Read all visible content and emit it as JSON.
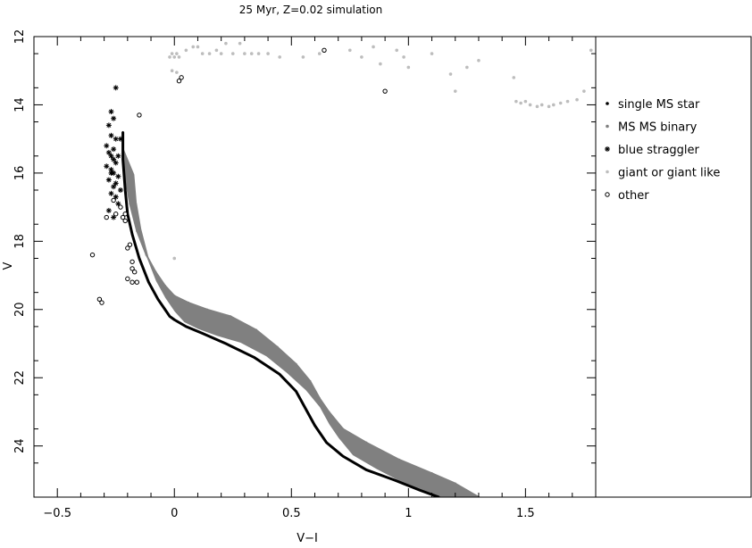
{
  "chart_data": {
    "type": "scatter",
    "title": "25 Myr, Z=0.02 simulation",
    "xlabel": "V−I",
    "ylabel": "V",
    "xlim": [
      -0.6,
      1.8
    ],
    "ylim": [
      25.5,
      12.0
    ],
    "y_inverted": true,
    "grid": false,
    "legend_position": "right",
    "x_ticks": [
      {
        "value": -0.5,
        "label": "−0.5"
      },
      {
        "value": 0,
        "label": "0"
      },
      {
        "value": 0.5,
        "label": "0.5"
      },
      {
        "value": 1,
        "label": "1"
      },
      {
        "value": 1.5,
        "label": "1.5"
      }
    ],
    "y_ticks": [
      {
        "value": 12,
        "label": "12"
      },
      {
        "value": 14,
        "label": "14"
      },
      {
        "value": 16,
        "label": "16"
      },
      {
        "value": 18,
        "label": "18"
      },
      {
        "value": 20,
        "label": "20"
      },
      {
        "value": 22,
        "label": "22"
      },
      {
        "value": 24,
        "label": "24"
      }
    ],
    "series": [
      {
        "name": "single MS star",
        "marker": "dot",
        "color": "#000000",
        "shape": "sequence_line",
        "x": [
          -0.22,
          -0.22,
          -0.21,
          -0.2,
          -0.18,
          -0.15,
          -0.11,
          -0.07,
          -0.04,
          -0.02,
          0.0,
          0.05,
          0.12,
          0.22,
          0.34,
          0.45,
          0.52,
          0.56,
          0.6,
          0.65,
          0.72,
          0.82,
          0.94,
          1.05,
          1.13
        ],
        "y": [
          14.8,
          15.6,
          16.5,
          17.2,
          17.8,
          18.5,
          19.2,
          19.7,
          20.0,
          20.2,
          20.3,
          20.5,
          20.7,
          21.0,
          21.4,
          21.9,
          22.4,
          22.9,
          23.4,
          23.9,
          24.3,
          24.7,
          25.0,
          25.3,
          25.5
        ]
      },
      {
        "name": "MS MS binary",
        "marker": "dot",
        "color": "#808080",
        "shape": "band",
        "x": [
          -0.22,
          -0.21,
          -0.19,
          -0.16,
          -0.12,
          -0.08,
          -0.04,
          0.0,
          0.06,
          0.14,
          0.24,
          0.35,
          0.44,
          0.52,
          0.58,
          0.62,
          0.66,
          0.72,
          0.82,
          0.96,
          1.1,
          1.2,
          1.3
        ],
        "y": [
          15.3,
          16.1,
          16.9,
          17.7,
          18.4,
          18.9,
          19.3,
          19.6,
          19.8,
          20.0,
          20.2,
          20.6,
          21.1,
          21.6,
          22.1,
          22.6,
          23.0,
          23.5,
          23.9,
          24.4,
          24.8,
          25.1,
          25.5
        ],
        "band_width_mag": 0.75
      },
      {
        "name": "blue straggler",
        "marker": "asterisk",
        "color": "#000000",
        "x": [
          -0.25,
          -0.27,
          -0.26,
          -0.28,
          -0.27,
          -0.25,
          -0.29,
          -0.26,
          -0.28,
          -0.27,
          -0.24,
          -0.26,
          -0.25,
          -0.29,
          -0.27,
          -0.26,
          -0.24,
          -0.28,
          -0.25,
          -0.26,
          -0.23,
          -0.27,
          -0.25,
          -0.24,
          -0.28,
          -0.26,
          -0.23,
          -0.27
        ],
        "y": [
          13.5,
          14.2,
          14.4,
          14.6,
          14.9,
          15.0,
          15.2,
          15.3,
          15.4,
          15.5,
          15.5,
          15.6,
          15.7,
          15.8,
          15.9,
          16.0,
          16.1,
          16.2,
          16.3,
          16.4,
          16.5,
          16.6,
          16.7,
          16.9,
          17.1,
          17.3,
          15.0,
          16.0
        ]
      },
      {
        "name": "giant or giant like",
        "marker": "dot",
        "color": "#bdbdbd",
        "x": [
          -0.02,
          -0.01,
          0.0,
          0.01,
          0.02,
          0.05,
          0.08,
          0.1,
          0.12,
          0.15,
          0.18,
          0.2,
          0.22,
          0.25,
          0.28,
          0.3,
          0.33,
          0.36,
          0.4,
          0.45,
          0.55,
          0.62,
          0.75,
          0.8,
          0.85,
          0.88,
          0.95,
          0.98,
          1.0,
          1.1,
          1.18,
          1.2,
          1.25,
          1.3,
          1.45,
          1.46,
          1.48,
          1.5,
          1.52,
          1.55,
          1.57,
          1.6,
          1.62,
          1.65,
          1.68,
          1.72,
          1.75,
          1.78,
          -0.01,
          0.01,
          0.0
        ],
        "y": [
          12.6,
          12.5,
          12.6,
          12.5,
          12.6,
          12.4,
          12.3,
          12.3,
          12.5,
          12.5,
          12.4,
          12.5,
          12.2,
          12.5,
          12.2,
          12.5,
          12.5,
          12.5,
          12.5,
          12.6,
          12.6,
          12.5,
          12.4,
          12.6,
          12.3,
          12.8,
          12.4,
          12.6,
          12.9,
          12.5,
          13.1,
          13.6,
          12.9,
          12.7,
          13.2,
          13.9,
          13.95,
          13.9,
          14.0,
          14.05,
          14.0,
          14.05,
          14.0,
          13.95,
          13.9,
          13.85,
          13.6,
          12.4,
          13.0,
          13.05,
          18.5
        ],
        "y_note": ""
      },
      {
        "name": "other",
        "marker": "open-circle",
        "color": "#000000",
        "x": [
          -0.35,
          -0.32,
          -0.31,
          -0.29,
          -0.26,
          -0.25,
          -0.23,
          -0.22,
          -0.21,
          -0.21,
          -0.2,
          -0.19,
          -0.18,
          -0.18,
          -0.2,
          -0.18,
          -0.16,
          -0.17,
          -0.15,
          0.02,
          0.03,
          0.64,
          0.9
        ],
        "y": [
          18.4,
          19.7,
          19.8,
          17.3,
          16.8,
          17.2,
          17.0,
          17.3,
          17.4,
          17.2,
          18.2,
          18.1,
          18.6,
          18.8,
          19.1,
          19.2,
          19.2,
          18.9,
          14.3,
          13.3,
          13.2,
          12.4,
          13.6
        ]
      }
    ]
  }
}
